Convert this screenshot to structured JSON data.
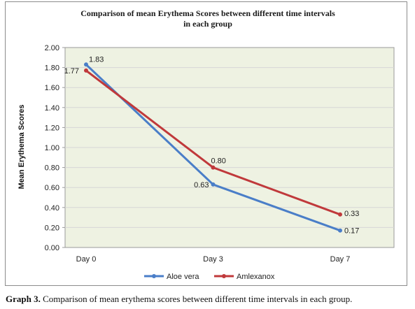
{
  "caption": {
    "label": "Graph 3.",
    "text": "Comparison of mean erythema scores between different time intervals in each group."
  },
  "colors": {
    "plot_background": "#eef2e2",
    "grid": "#d6d6d6",
    "axis": "#9a9a9a",
    "aloe_vera": "#4a7ec8",
    "amlexanox": "#c0393b"
  },
  "chart_data": {
    "type": "line",
    "title": "Comparison of mean Erythema Scores between different time intervals in each group",
    "xlabel": "",
    "ylabel": "Mean Erythema Scores",
    "categories": [
      "Day 0",
      "Day 3",
      "Day 7"
    ],
    "ylim": [
      0,
      2
    ],
    "yticks": [
      "0.00",
      "0.20",
      "0.40",
      "0.60",
      "0.80",
      "1.00",
      "1.20",
      "1.40",
      "1.60",
      "1.80",
      "2.00"
    ],
    "grid": true,
    "legend_position": "bottom",
    "series": [
      {
        "name": "Aloe vera",
        "values": [
          1.83,
          0.63,
          0.17
        ],
        "labels": [
          "1.83",
          "0.63",
          "0.17"
        ],
        "color": "#4a7ec8"
      },
      {
        "name": "Amlexanox",
        "values": [
          1.77,
          0.8,
          0.33
        ],
        "labels": [
          "1.77",
          "0.80",
          "0.33"
        ],
        "color": "#c0393b"
      }
    ]
  }
}
